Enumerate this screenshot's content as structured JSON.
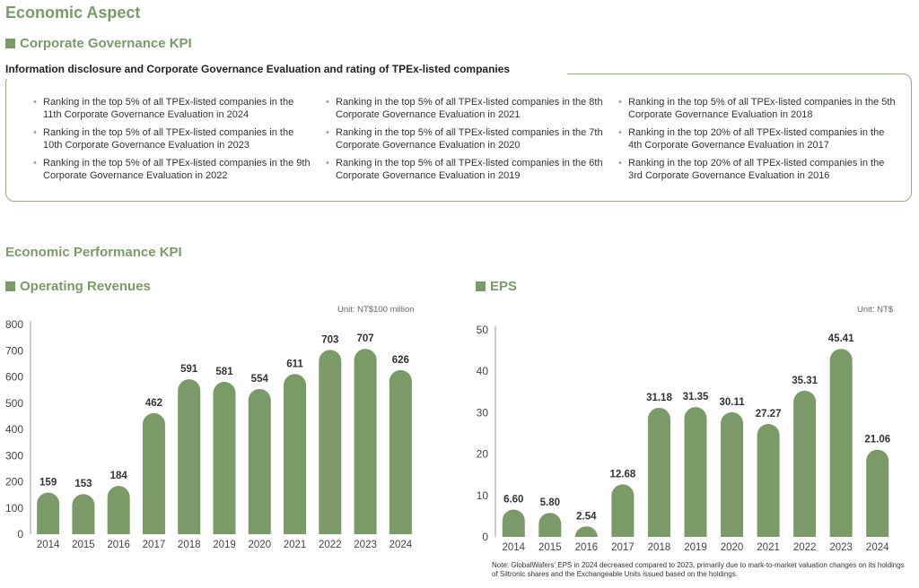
{
  "page_title": "Economic Aspect",
  "governance": {
    "heading": "Corporate Governance KPI",
    "subheading": "Information disclosure and Corporate Governance Evaluation and rating of TPEx-listed companies",
    "columns": [
      [
        "Ranking in the top 5% of all TPEx-listed companies in the 11th Corporate Governance Evaluation in 2024",
        "Ranking in the top 5% of all TPEx-listed companies in the 10th Corporate Governance Evaluation in 2023",
        "Ranking in the top 5% of all TPEx-listed companies in the 9th Corporate Governance Evaluation in 2022"
      ],
      [
        "Ranking in the top 5% of all TPEx-listed companies in the 8th Corporate Governance Evaluation in 2021",
        "Ranking in the top 5% of all TPEx-listed companies in the 7th Corporate Governance Evaluation in 2020",
        "Ranking in the top 5% of all TPEx-listed companies in the 6th Corporate Governance Evaluation in 2019"
      ],
      [
        "Ranking in the top 5% of all TPEx-listed companies in the 5th Corporate Governance Evaluation in 2018",
        "Ranking in the top 20% of all TPEx-listed companies in the 4th Corporate Governance Evaluation in 2017",
        "Ranking in the top 20% of all TPEx-listed companies in the 3rd Corporate Governance Evaluation in 2016"
      ]
    ]
  },
  "performance_heading": "Economic Performance KPI",
  "colors": {
    "accent": "#7a9a67",
    "bar": "#7a9a67",
    "border": "#8fae7c"
  },
  "chart_data": [
    {
      "type": "bar",
      "title": "Operating Revenues",
      "unit": "Unit: NT$100 million",
      "categories": [
        "2014",
        "2015",
        "2016",
        "2017",
        "2018",
        "2019",
        "2020",
        "2021",
        "2022",
        "2023",
        "2024"
      ],
      "values": [
        159,
        153,
        184,
        462,
        591,
        581,
        554,
        611,
        703,
        707,
        626
      ],
      "value_labels": [
        "159",
        "153",
        "184",
        "462",
        "591",
        "581",
        "554",
        "611",
        "703",
        "707",
        "626"
      ],
      "ylim": [
        0,
        800
      ],
      "yticks": [
        0,
        100,
        200,
        300,
        400,
        500,
        600,
        700,
        800
      ],
      "grid": false
    },
    {
      "type": "bar",
      "title": "EPS",
      "unit": "Unit: NT$",
      "categories": [
        "2014",
        "2015",
        "2016",
        "2017",
        "2018",
        "2019",
        "2020",
        "2021",
        "2022",
        "2023",
        "2024"
      ],
      "values": [
        6.6,
        5.8,
        2.54,
        12.68,
        31.18,
        31.35,
        30.11,
        27.27,
        35.31,
        45.41,
        21.06
      ],
      "value_labels": [
        "6.60",
        "5.80",
        "2.54",
        "12.68",
        "31.18",
        "31.35",
        "30.11",
        "27.27",
        "35.31",
        "45.41",
        "21.06"
      ],
      "ylim": [
        0,
        50
      ],
      "yticks": [
        0,
        10,
        20,
        30,
        40,
        50
      ],
      "grid": false,
      "note": "Note: GlobalWafers' EPS in 2024 decreased compared to 2023, primarily due to mark-to-market valuation changes on its holdings of Siltronic shares and the Exchangeable Units issued based on the holdings."
    }
  ]
}
